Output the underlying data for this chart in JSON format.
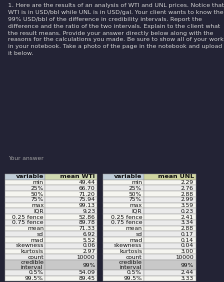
{
  "question_text": "1. Here are the results of an analysis of WTI and UNL prices. Notice that\nWTI is in USD/bbl while UNL is in USD/gal. Your client wants to know the\n99% USD/bbl of the difference in credibility intervals. Report the\ndifference and the ratio of the two intervals. Explain to the client what\nthe result means. Provide your answer directly below along with the\nreasons for the calculations you made. Be sure to show all of your work\nin your notebook. Take a photo of the page in the notebook and upload\nit below.",
  "your_answer_label": "Your answer",
  "wti_rows": [
    [
      "variable",
      "mean WTI"
    ],
    [
      "min",
      "49.44"
    ],
    [
      "25%",
      "66.70"
    ],
    [
      "50%",
      "71.20"
    ],
    [
      "75%",
      "75.94"
    ],
    [
      "max",
      "99.13"
    ],
    [
      "IQR",
      "9.23"
    ],
    [
      "0.25 fence",
      "52.86"
    ],
    [
      "0.75 fence",
      "89.78"
    ],
    [
      "mean",
      "71.33"
    ],
    [
      "sd",
      "6.92"
    ],
    [
      "mad",
      "5.52"
    ],
    [
      "skewness",
      "0.06"
    ],
    [
      "kurtosis",
      "2.97"
    ],
    [
      "count",
      "10000"
    ],
    [
      "credible\ninterval",
      "99%"
    ],
    [
      "0.5%",
      "54.09"
    ],
    [
      "99.5%",
      "89.45"
    ]
  ],
  "unl_rows": [
    [
      "variable",
      "mean UNL"
    ],
    [
      "min",
      "2.29"
    ],
    [
      "25%",
      "2.76"
    ],
    [
      "50%",
      "2.88"
    ],
    [
      "75%",
      "2.99"
    ],
    [
      "max",
      "3.59"
    ],
    [
      "IQR",
      "0.23"
    ],
    [
      "0.25 fence",
      "2.41"
    ],
    [
      "0.75 fence",
      "3.34"
    ],
    [
      "mean",
      "2.88"
    ],
    [
      "sd",
      "0.17"
    ],
    [
      "mad",
      "0.14"
    ],
    [
      "skewness",
      "0.04"
    ],
    [
      "kurtosis",
      "3.00"
    ],
    [
      "count",
      "10000"
    ],
    [
      "credible\ninterval",
      "99%"
    ],
    [
      "0.5%",
      "2.44"
    ],
    [
      "99.5%",
      "3.33"
    ]
  ],
  "bg_question": "#232335",
  "bg_table_outer": "#1e1e2e",
  "bg_table_inner": "#2a2a3a",
  "bg_header_col": "#c0cdd8",
  "bg_header_val_wti": "#cfd8b0",
  "bg_header_val_unl": "#cfd4a0",
  "bg_credible_left": "#c8c8c8",
  "bg_credible_right": "#c8c8c8",
  "bg_white": "#f5f5f0",
  "bg_light": "#ebebeb",
  "text_dark": "#111111",
  "text_light": "#cccccc"
}
